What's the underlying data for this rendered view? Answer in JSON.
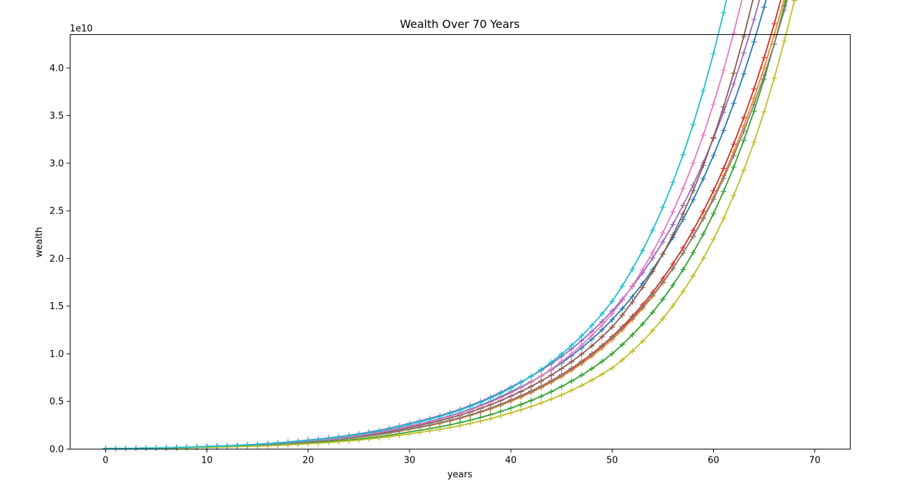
{
  "chart_data": {
    "type": "line",
    "title": "Wealth Over 70 Years",
    "xlabel": "years",
    "ylabel": "wealth",
    "y_scale_label": "1e10",
    "xlim": [
      -3.5,
      73.5
    ],
    "ylim": [
      0,
      4.35
    ],
    "x_ticks": [
      0,
      10,
      20,
      30,
      40,
      50,
      60,
      70
    ],
    "y_ticks": [
      0.0,
      0.5,
      1.0,
      1.5,
      2.0,
      2.5,
      3.0,
      3.5,
      4.0
    ],
    "x_tick_labels": [
      "0",
      "10",
      "20",
      "30",
      "40",
      "50",
      "60",
      "70"
    ],
    "y_tick_labels": [
      "0.0",
      "0.5",
      "1.0",
      "1.5",
      "2.0",
      "2.5",
      "3.0",
      "3.5",
      "4.0"
    ],
    "grid": false,
    "marker": "+",
    "x_start": 0,
    "x_end": 70,
    "series": [
      {
        "color": "#1f77b4",
        "values_1e10": [
          0.005,
          0.026,
          0.086,
          0.243,
          0.601,
          1.358,
          3.08
        ]
      },
      {
        "color": "#ff7f0e",
        "values_1e10": [
          0.005,
          0.022,
          0.073,
          0.207,
          0.502,
          1.15,
          2.64
        ]
      },
      {
        "color": "#2ca02c",
        "values_1e10": [
          0.005,
          0.019,
          0.062,
          0.18,
          0.43,
          1.0,
          2.47
        ]
      },
      {
        "color": "#d62728",
        "values_1e10": [
          0.005,
          0.022,
          0.074,
          0.211,
          0.515,
          1.18,
          2.71
        ]
      },
      {
        "color": "#9467bd",
        "values_1e10": [
          0.005,
          0.028,
          0.095,
          0.27,
          0.65,
          1.45,
          3.26
        ]
      },
      {
        "color": "#8c564b",
        "values_1e10": [
          0.005,
          0.024,
          0.08,
          0.228,
          0.556,
          1.28,
          3.27
        ]
      },
      {
        "color": "#e377c2",
        "values_1e10": [
          0.005,
          0.025,
          0.084,
          0.24,
          0.59,
          1.42,
          3.62
        ]
      },
      {
        "color": "#7f7f7f",
        "values_1e10": [
          0.005,
          0.022,
          0.074,
          0.212,
          0.512,
          1.17,
          2.62
        ]
      },
      {
        "color": "#bcbd22",
        "values_1e10": [
          0.005,
          0.017,
          0.056,
          0.16,
          0.38,
          0.85,
          2.2
        ]
      },
      {
        "color": "#17becf",
        "values_1e10": [
          0.005,
          0.027,
          0.092,
          0.262,
          0.64,
          1.55,
          4.15
        ]
      }
    ]
  }
}
